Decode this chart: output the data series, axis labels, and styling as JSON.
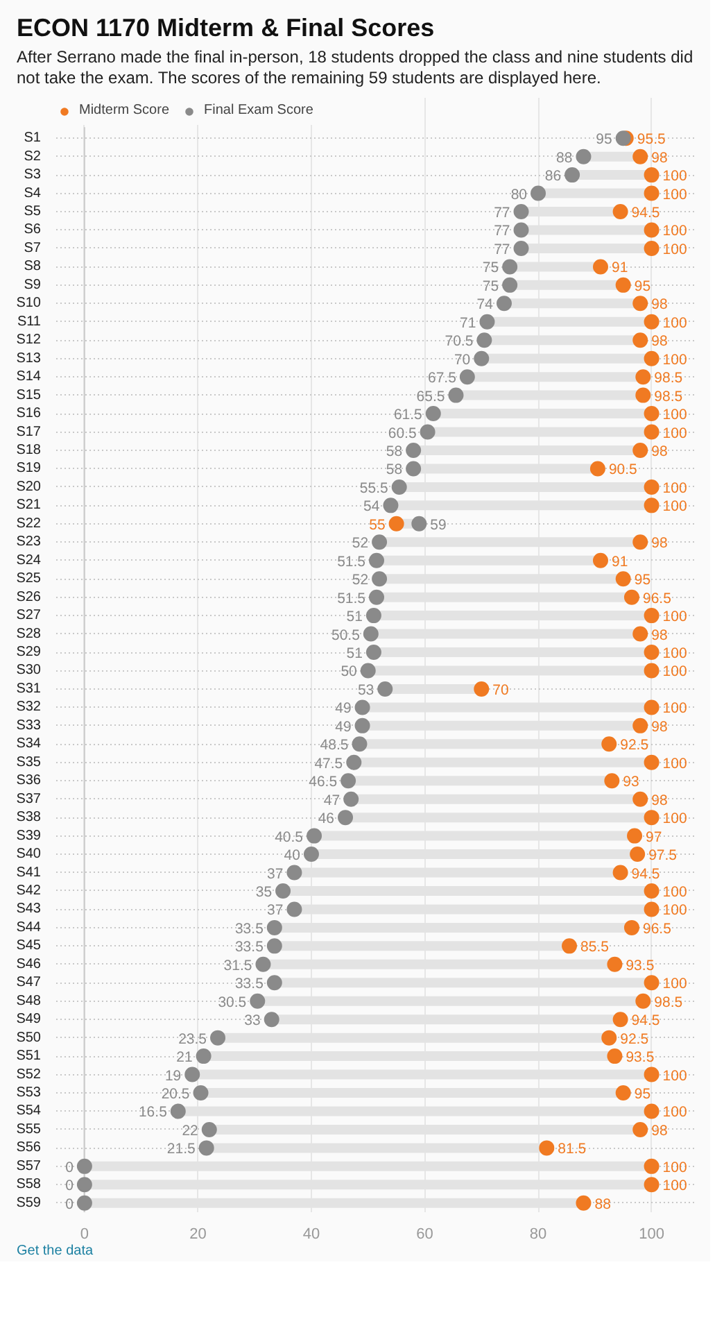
{
  "chart_data": {
    "type": "scatter",
    "orientation": "horizontal",
    "title": "ECON 1170 Midterm & Final Scores",
    "subtitle": "After Serrano made the final in-person, 18 students dropped the class and nine students did not take the exam. The scores of the remaining 59 students are displayed here.",
    "annotations": [
      "Get the data"
    ],
    "categories": [
      "S1",
      "S2",
      "S3",
      "S4",
      "S5",
      "S6",
      "S7",
      "S8",
      "S9",
      "S10",
      "S11",
      "S12",
      "S13",
      "S14",
      "S15",
      "S16",
      "S17",
      "S18",
      "S19",
      "S20",
      "S21",
      "S22",
      "S23",
      "S24",
      "S25",
      "S26",
      "S27",
      "S28",
      "S29",
      "S30",
      "S31",
      "S32",
      "S33",
      "S34",
      "S35",
      "S36",
      "S37",
      "S38",
      "S39",
      "S40",
      "S41",
      "S42",
      "S43",
      "S44",
      "S45",
      "S46",
      "S47",
      "S48",
      "S49",
      "S50",
      "S51",
      "S52",
      "S53",
      "S54",
      "S55",
      "S56",
      "S57",
      "S58",
      "S59"
    ],
    "series": [
      {
        "name": "Midterm Score",
        "color": "#f07a22",
        "values": [
          95.5,
          98,
          100,
          100,
          94.5,
          100,
          100,
          91,
          95,
          98,
          100,
          98,
          100,
          98.5,
          98.5,
          100,
          100,
          98,
          90.5,
          100,
          100,
          55,
          98,
          91,
          95,
          96.5,
          100,
          98,
          100,
          100,
          70,
          100,
          98,
          92.5,
          100,
          93,
          98,
          100,
          97,
          97.5,
          94.5,
          100,
          100,
          96.5,
          85.5,
          93.5,
          100,
          98.5,
          94.5,
          92.5,
          93.5,
          100,
          95,
          100,
          98,
          81.5,
          100,
          100,
          88
        ]
      },
      {
        "name": "Final Exam Score",
        "color": "#8a8a8a",
        "values": [
          95,
          88,
          86,
          80,
          77,
          77,
          77,
          75,
          75,
          74,
          71,
          70.5,
          70,
          67.5,
          65.5,
          61.5,
          60.5,
          58,
          58,
          55.5,
          54,
          59,
          52,
          51.5,
          52,
          51.5,
          51,
          50.5,
          51,
          50,
          53,
          49,
          49,
          48.5,
          47.5,
          46.5,
          47,
          46,
          40.5,
          40,
          37,
          35,
          37,
          33.5,
          33.5,
          31.5,
          33.5,
          30.5,
          33,
          23.5,
          21,
          19,
          20.5,
          16.5,
          22,
          21.5,
          0,
          0,
          0
        ]
      }
    ],
    "xlim": [
      -5,
      108
    ],
    "xticks": [
      0,
      20,
      40,
      60,
      80,
      100
    ],
    "grid": true,
    "legend": "top",
    "marker": "circle",
    "data_labels": true
  }
}
